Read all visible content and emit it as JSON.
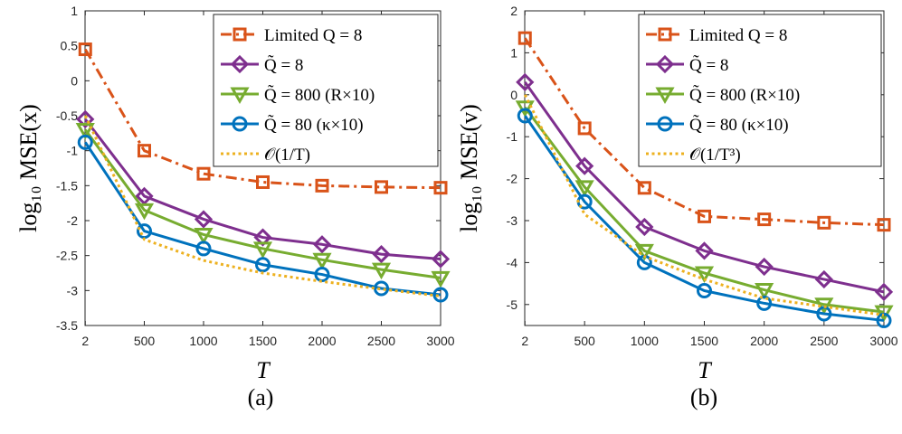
{
  "chart_data": [
    {
      "type": "line",
      "panel": "a",
      "caption": "(a)",
      "xlabel": "T",
      "ylabel": "log₁₀ MSE(x)",
      "x": [
        2,
        500,
        1000,
        1500,
        2000,
        2500,
        3000
      ],
      "xticks": [
        "2",
        "500",
        "1000",
        "1500",
        "2000",
        "2500",
        "3000"
      ],
      "xlim": [
        0,
        3000
      ],
      "ylim": [
        -3.5,
        1
      ],
      "yticks": [
        "1",
        "0.5",
        "0",
        "-0.5",
        "-1",
        "-1.5",
        "-2",
        "-2.5",
        "-3",
        "-3.5"
      ],
      "series": [
        {
          "name": "Limited Q = 8",
          "color": "#D95319",
          "marker": "square",
          "dash": "dashdot",
          "values": [
            0.45,
            -1.0,
            -1.33,
            -1.45,
            -1.5,
            -1.52,
            -1.53
          ]
        },
        {
          "name": "Q̃ = 8",
          "color": "#7E2F8E",
          "marker": "diamond",
          "dash": "solid",
          "values": [
            -0.55,
            -1.65,
            -1.98,
            -2.24,
            -2.34,
            -2.48,
            -2.55
          ]
        },
        {
          "name": "Q̃ = 800 (R×10)",
          "color": "#77AC30",
          "marker": "triangle",
          "dash": "solid",
          "values": [
            -0.7,
            -1.85,
            -2.2,
            -2.4,
            -2.56,
            -2.7,
            -2.82
          ]
        },
        {
          "name": "Q̃ = 80 (κ×10)",
          "color": "#0072BD",
          "marker": "circle",
          "dash": "solid",
          "values": [
            -0.88,
            -2.15,
            -2.4,
            -2.63,
            -2.77,
            -2.97,
            -3.06
          ]
        },
        {
          "name": "𝒪(1/T)",
          "color": "#EDB120",
          "marker": "none",
          "dash": "dotted",
          "values": [
            -0.5,
            -2.27,
            -2.57,
            -2.75,
            -2.87,
            -2.98,
            -3.08
          ]
        }
      ]
    },
    {
      "type": "line",
      "panel": "b",
      "caption": "(b)",
      "xlabel": "T",
      "ylabel": "log₁₀ MSE(v)",
      "x": [
        2,
        500,
        1000,
        1500,
        2000,
        2500,
        3000
      ],
      "xticks": [
        "2",
        "500",
        "1000",
        "1500",
        "2000",
        "2500",
        "3000"
      ],
      "xlim": [
        0,
        3000
      ],
      "ylim": [
        -5.5,
        2
      ],
      "yticks": [
        "2",
        "1",
        "0",
        "-1",
        "-2",
        "-3",
        "-4",
        "-5"
      ],
      "series": [
        {
          "name": "Limited Q = 8",
          "color": "#D95319",
          "marker": "square",
          "dash": "dashdot",
          "values": [
            1.35,
            -0.8,
            -2.22,
            -2.9,
            -2.97,
            -3.05,
            -3.1
          ]
        },
        {
          "name": "Q̃ = 8",
          "color": "#7E2F8E",
          "marker": "diamond",
          "dash": "solid",
          "values": [
            0.3,
            -1.7,
            -3.15,
            -3.72,
            -4.1,
            -4.4,
            -4.7
          ]
        },
        {
          "name": "Q̃ = 800 (R×10)",
          "color": "#77AC30",
          "marker": "triangle",
          "dash": "solid",
          "values": [
            -0.3,
            -2.2,
            -3.72,
            -4.25,
            -4.65,
            -5.0,
            -5.18
          ]
        },
        {
          "name": "Q̃ = 80 (κ×10)",
          "color": "#0072BD",
          "marker": "circle",
          "dash": "solid",
          "values": [
            -0.5,
            -2.55,
            -4.0,
            -4.67,
            -4.97,
            -5.22,
            -5.38
          ]
        },
        {
          "name": "𝒪(1/T³)",
          "color": "#EDB120",
          "marker": "none",
          "dash": "dotted",
          "values": [
            0.0,
            -2.85,
            -3.85,
            -4.4,
            -4.85,
            -5.05,
            -5.25
          ]
        }
      ]
    }
  ]
}
